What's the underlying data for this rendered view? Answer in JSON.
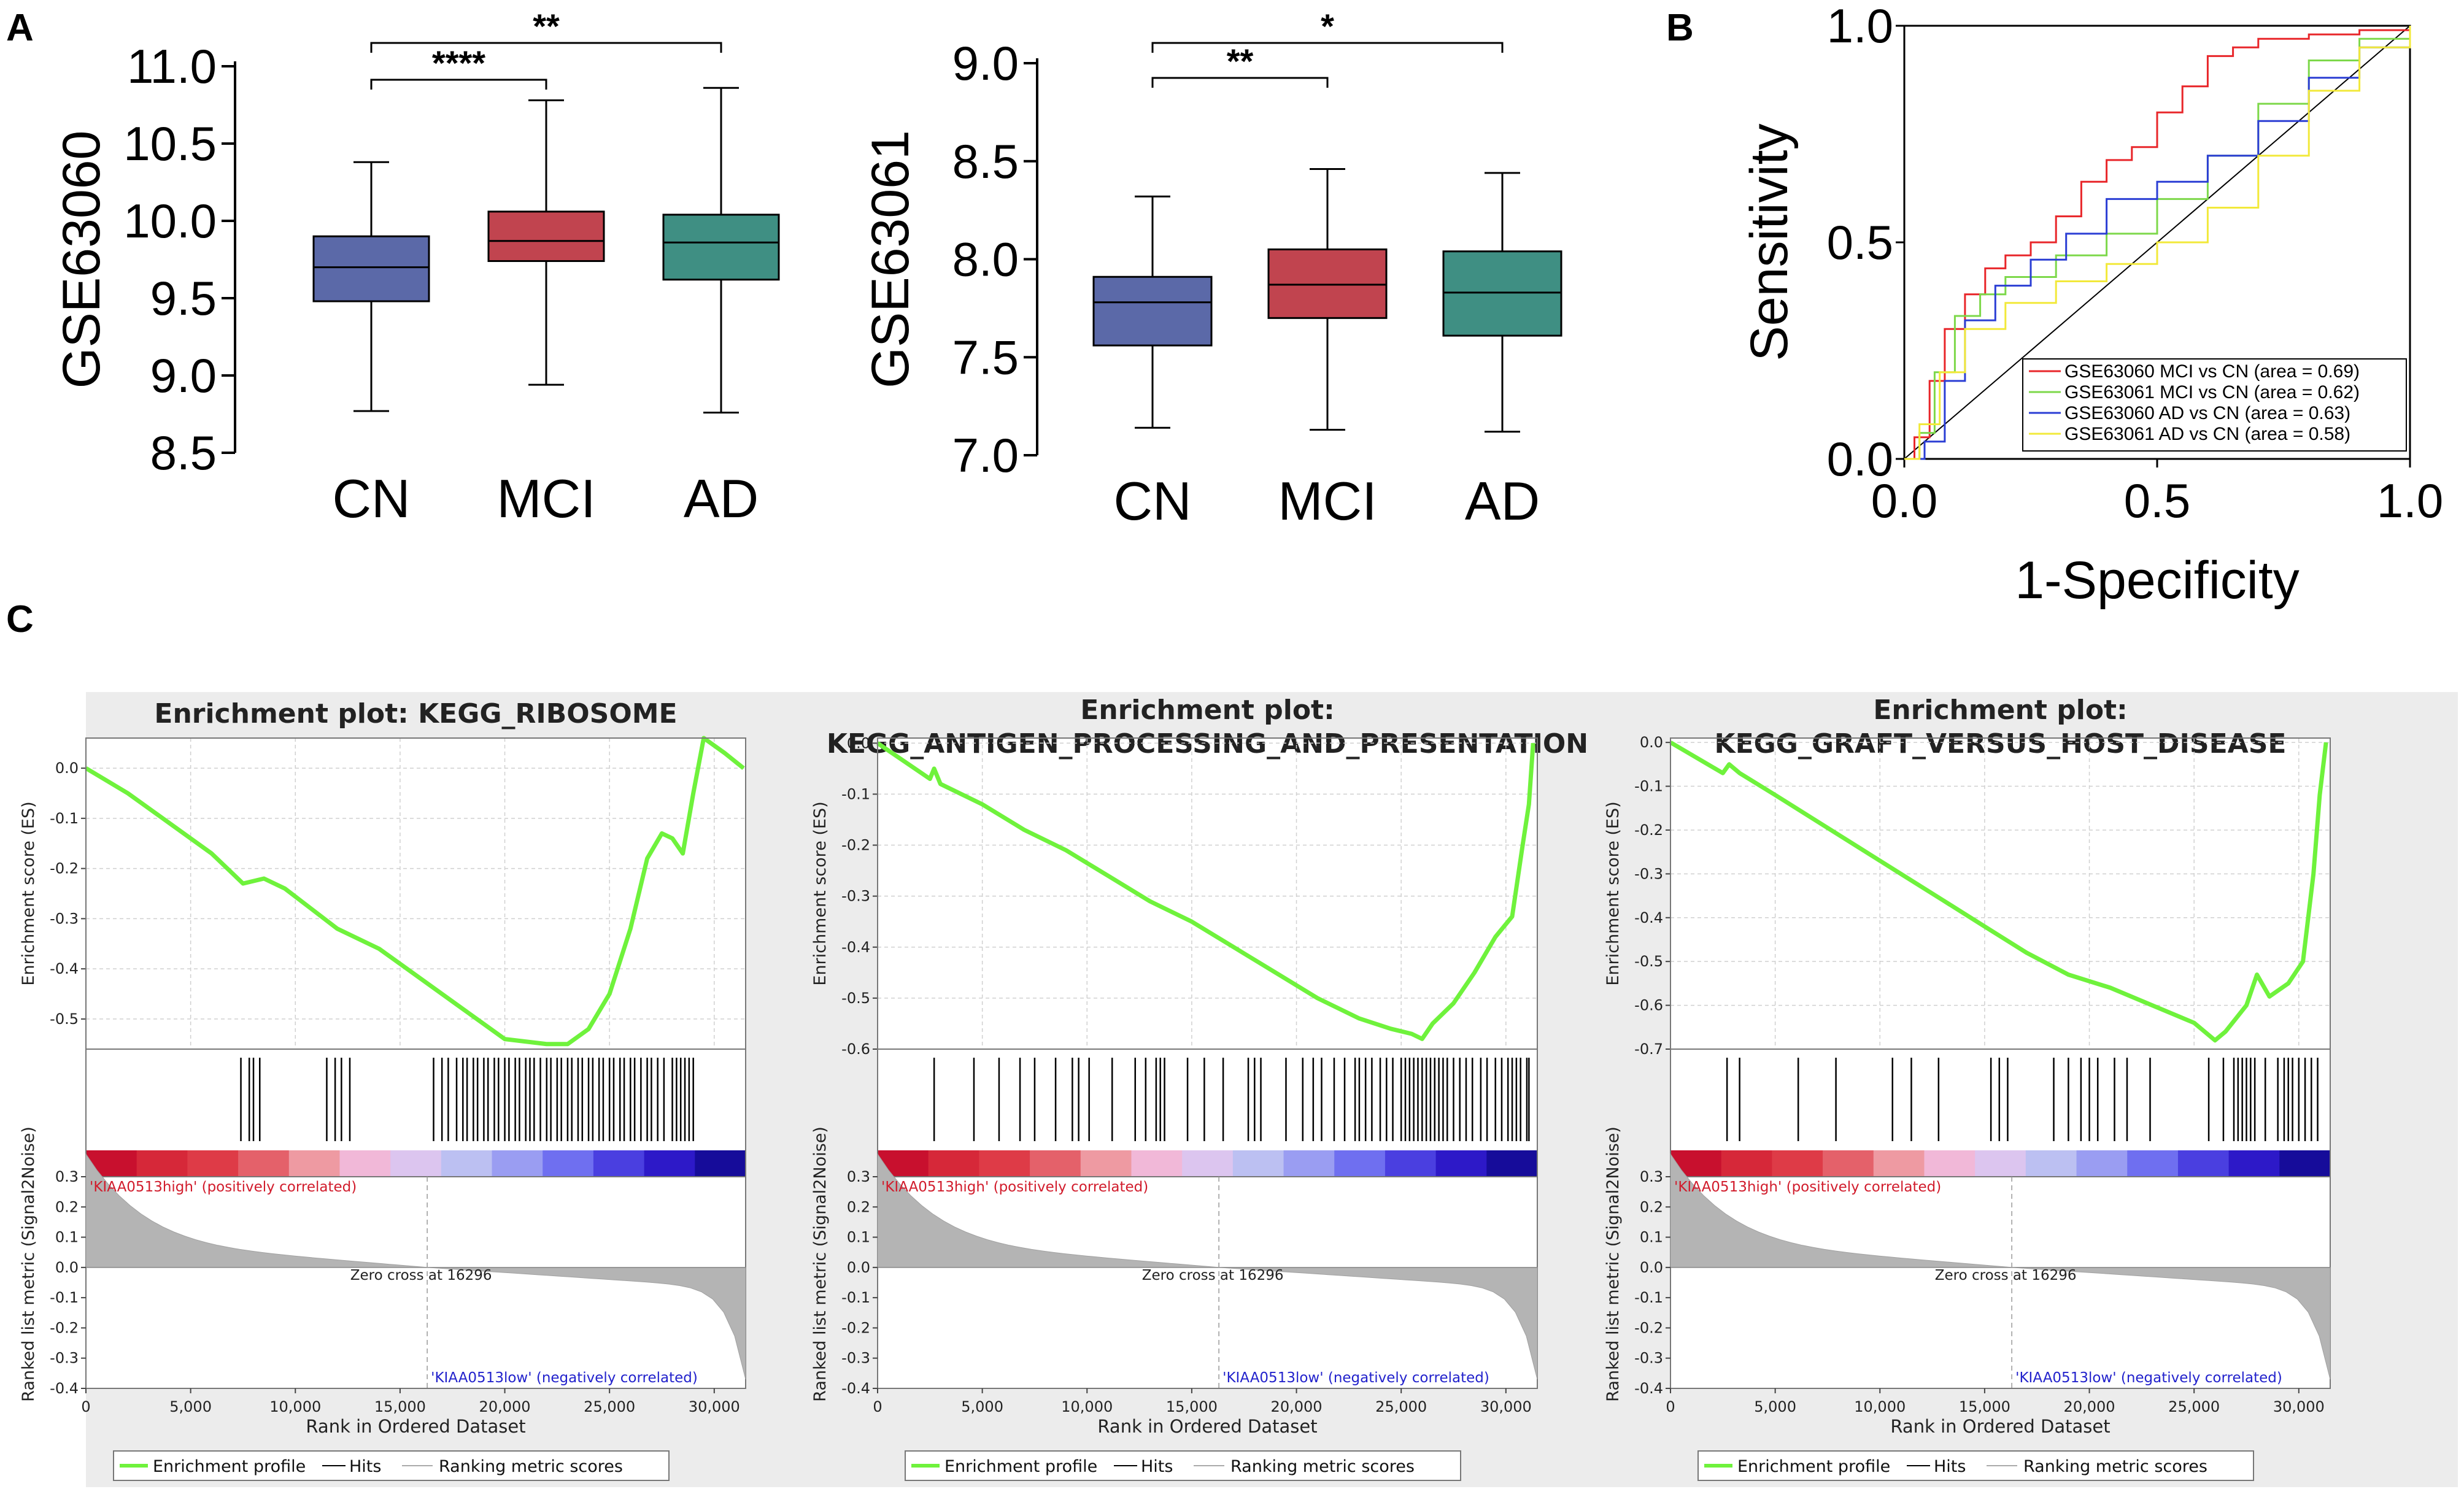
{
  "panels": {
    "a": "A",
    "b": "B",
    "c": "C"
  },
  "chart_data": [
    {
      "id": "box1",
      "type": "box",
      "ylabel": "GSE63060",
      "ylim": [
        8.5,
        11.0
      ],
      "yticks": [
        "8.5",
        "9.0",
        "9.5",
        "10.0",
        "10.5",
        "11.0"
      ],
      "categories": [
        "CN",
        "MCI",
        "AD"
      ],
      "colors": [
        "#5b69a8",
        "#c1444f",
        "#3f8f83"
      ],
      "boxes": [
        {
          "min": 8.77,
          "q1": 9.48,
          "median": 9.7,
          "q3": 9.9,
          "max": 10.38
        },
        {
          "min": 8.94,
          "q1": 9.74,
          "median": 9.87,
          "q3": 10.06,
          "max": 10.78
        },
        {
          "min": 8.76,
          "q1": 9.62,
          "median": 9.86,
          "q3": 10.04,
          "max": 10.86
        }
      ],
      "significance": [
        {
          "from": 0,
          "to": 1,
          "label": "****"
        },
        {
          "from": 0,
          "to": 2,
          "label": "**"
        }
      ]
    },
    {
      "id": "box2",
      "type": "box",
      "ylabel": "GSE63061",
      "ylim": [
        7.0,
        9.0
      ],
      "yticks": [
        "7.0",
        "7.5",
        "8.0",
        "8.5",
        "9.0"
      ],
      "categories": [
        "CN",
        "MCI",
        "AD"
      ],
      "colors": [
        "#5b69a8",
        "#c1444f",
        "#3f8f83"
      ],
      "boxes": [
        {
          "min": 7.14,
          "q1": 7.56,
          "median": 7.78,
          "q3": 7.91,
          "max": 8.32
        },
        {
          "min": 7.13,
          "q1": 7.7,
          "median": 7.87,
          "q3": 8.05,
          "max": 8.46
        },
        {
          "min": 7.12,
          "q1": 7.61,
          "median": 7.83,
          "q3": 8.04,
          "max": 8.44
        }
      ],
      "significance": [
        {
          "from": 0,
          "to": 1,
          "label": "**"
        },
        {
          "from": 0,
          "to": 2,
          "label": "*"
        }
      ]
    },
    {
      "id": "roc",
      "type": "line",
      "xlabel": "1-Specificity",
      "ylabel": "Sensitivity",
      "xlim": [
        0,
        1
      ],
      "ylim": [
        0,
        1
      ],
      "xticks": [
        "0.0",
        "0.5",
        "1.0"
      ],
      "yticks": [
        "0.0",
        "0.5",
        "1.0"
      ],
      "series": [
        {
          "name": "GSE63060 MCI vs CN (area = 0.69)",
          "color": "#e8262a",
          "points": [
            [
              0,
              0
            ],
            [
              0.02,
              0.05
            ],
            [
              0.05,
              0.18
            ],
            [
              0.08,
              0.3
            ],
            [
              0.12,
              0.38
            ],
            [
              0.16,
              0.44
            ],
            [
              0.2,
              0.47
            ],
            [
              0.25,
              0.5
            ],
            [
              0.3,
              0.56
            ],
            [
              0.35,
              0.64
            ],
            [
              0.4,
              0.69
            ],
            [
              0.45,
              0.72
            ],
            [
              0.5,
              0.8
            ],
            [
              0.55,
              0.86
            ],
            [
              0.6,
              0.93
            ],
            [
              0.65,
              0.95
            ],
            [
              0.7,
              0.97
            ],
            [
              0.8,
              0.98
            ],
            [
              0.9,
              0.99
            ],
            [
              1,
              1
            ]
          ]
        },
        {
          "name": "GSE63061 MCI vs CN (area = 0.62)",
          "color": "#7dd84a",
          "points": [
            [
              0,
              0
            ],
            [
              0.03,
              0.06
            ],
            [
              0.06,
              0.2
            ],
            [
              0.1,
              0.33
            ],
            [
              0.15,
              0.38
            ],
            [
              0.2,
              0.42
            ],
            [
              0.3,
              0.47
            ],
            [
              0.4,
              0.52
            ],
            [
              0.5,
              0.6
            ],
            [
              0.6,
              0.7
            ],
            [
              0.7,
              0.82
            ],
            [
              0.8,
              0.92
            ],
            [
              0.9,
              0.97
            ],
            [
              1,
              1
            ]
          ]
        },
        {
          "name": "GSE63060 AD vs CN (area = 0.63)",
          "color": "#2b3ed4",
          "points": [
            [
              0,
              0
            ],
            [
              0.04,
              0.04
            ],
            [
              0.08,
              0.18
            ],
            [
              0.12,
              0.32
            ],
            [
              0.18,
              0.4
            ],
            [
              0.25,
              0.46
            ],
            [
              0.32,
              0.52
            ],
            [
              0.4,
              0.6
            ],
            [
              0.5,
              0.64
            ],
            [
              0.6,
              0.7
            ],
            [
              0.7,
              0.78
            ],
            [
              0.8,
              0.88
            ],
            [
              0.9,
              0.95
            ],
            [
              1,
              1
            ]
          ]
        },
        {
          "name": "GSE63061 AD vs CN (area = 0.58)",
          "color": "#f2e93a",
          "points": [
            [
              0,
              0
            ],
            [
              0.03,
              0.08
            ],
            [
              0.07,
              0.2
            ],
            [
              0.12,
              0.3
            ],
            [
              0.2,
              0.36
            ],
            [
              0.3,
              0.41
            ],
            [
              0.4,
              0.45
            ],
            [
              0.5,
              0.5
            ],
            [
              0.6,
              0.58
            ],
            [
              0.7,
              0.7
            ],
            [
              0.8,
              0.85
            ],
            [
              0.9,
              0.95
            ],
            [
              1,
              1
            ]
          ]
        }
      ]
    },
    {
      "id": "gsea1",
      "type": "line",
      "title": [
        "Enrichment plot: KEGG_RIBOSOME"
      ],
      "es_yticks": [
        "0.0",
        "-0.1",
        "-0.2",
        "-0.3",
        "-0.4",
        "-0.5"
      ],
      "es_ylim": [
        -0.56,
        0.06
      ],
      "es_points": [
        [
          0,
          0
        ],
        [
          2000,
          -0.05
        ],
        [
          4000,
          -0.11
        ],
        [
          6000,
          -0.17
        ],
        [
          7500,
          -0.23
        ],
        [
          8500,
          -0.22
        ],
        [
          9500,
          -0.24
        ],
        [
          12000,
          -0.32
        ],
        [
          14000,
          -0.36
        ],
        [
          16000,
          -0.42
        ],
        [
          18000,
          -0.48
        ],
        [
          20000,
          -0.54
        ],
        [
          22000,
          -0.55
        ],
        [
          23000,
          -0.55
        ],
        [
          24000,
          -0.52
        ],
        [
          25000,
          -0.45
        ],
        [
          26000,
          -0.32
        ],
        [
          26800,
          -0.18
        ],
        [
          27500,
          -0.13
        ],
        [
          28000,
          -0.14
        ],
        [
          28500,
          -0.17
        ],
        [
          29000,
          -0.05
        ],
        [
          29500,
          0.06
        ],
        [
          30500,
          0.03
        ],
        [
          31400,
          0.0
        ]
      ],
      "hits": [
        7400,
        7800,
        8000,
        8300,
        11500,
        11900,
        12200,
        12600,
        16600,
        17000,
        17300,
        17700,
        18000,
        18200,
        18500,
        18700,
        19000,
        19200,
        19500,
        19700,
        20000,
        20200,
        20500,
        20700,
        21000,
        21200,
        21400,
        21700,
        22000,
        22200,
        22500,
        22700,
        23000,
        23200,
        23500,
        23700,
        24000,
        24200,
        24500,
        24700,
        25000,
        25200,
        25500,
        25700,
        26000,
        26200,
        26500,
        26800,
        27000,
        27300,
        27600,
        28000,
        28200,
        28400,
        28600,
        28800,
        29000
      ],
      "label_pos": "'KIAA0513high' (positively correlated)",
      "label_neg": "'KIAA0513low' (negatively correlated)",
      "zero_cross": "Zero cross at 16296",
      "rm_yticks": [
        "0.3",
        "0.2",
        "0.1",
        "0.0",
        "-0.1",
        "-0.2",
        "-0.3",
        "-0.4"
      ],
      "rm_ylim": [
        -0.4,
        0.3
      ],
      "xticks": [
        "0",
        "5,000",
        "10,000",
        "15,000",
        "20,000",
        "25,000",
        "30,000"
      ],
      "xlim": [
        0,
        31500
      ],
      "ylabel_es": "Enrichment score (ES)",
      "ylabel_rm": "Ranked list metric (Signal2Noise)",
      "xlabel": "Rank in Ordered Dataset",
      "legend": [
        "Enrichment profile",
        "Hits",
        "Ranking metric scores"
      ]
    },
    {
      "id": "gsea2",
      "type": "line",
      "title": [
        "Enrichment plot:",
        "KEGG_ANTIGEN_PROCESSING_AND_PRESENTATION"
      ],
      "es_yticks": [
        "0.0",
        "-0.1",
        "-0.2",
        "-0.3",
        "-0.4",
        "-0.5",
        "-0.6"
      ],
      "es_ylim": [
        -0.6,
        0.01
      ],
      "es_points": [
        [
          0,
          0
        ],
        [
          2500,
          -0.07
        ],
        [
          2700,
          -0.05
        ],
        [
          3000,
          -0.08
        ],
        [
          5000,
          -0.12
        ],
        [
          7000,
          -0.17
        ],
        [
          9000,
          -0.21
        ],
        [
          11000,
          -0.26
        ],
        [
          13000,
          -0.31
        ],
        [
          15000,
          -0.35
        ],
        [
          17000,
          -0.4
        ],
        [
          19000,
          -0.45
        ],
        [
          21000,
          -0.5
        ],
        [
          23000,
          -0.54
        ],
        [
          24500,
          -0.56
        ],
        [
          25500,
          -0.57
        ],
        [
          26000,
          -0.58
        ],
        [
          26500,
          -0.55
        ],
        [
          27500,
          -0.51
        ],
        [
          28500,
          -0.45
        ],
        [
          29500,
          -0.38
        ],
        [
          30300,
          -0.34
        ],
        [
          30800,
          -0.2
        ],
        [
          31100,
          -0.12
        ],
        [
          31300,
          0.0
        ]
      ],
      "hits": [
        2700,
        4600,
        5800,
        6800,
        7500,
        8500,
        9300,
        9600,
        10100,
        11200,
        12300,
        12800,
        13300,
        13500,
        13700,
        14800,
        15600,
        16500,
        17700,
        18000,
        18300,
        19500,
        20300,
        20800,
        21200,
        21800,
        22300,
        22800,
        23000,
        23300,
        23600,
        24000,
        24300,
        24600,
        25000,
        25200,
        25400,
        25600,
        25800,
        26000,
        26200,
        26400,
        26600,
        26800,
        27000,
        27200,
        27500,
        27800,
        28100,
        28400,
        28800,
        29100,
        29500,
        29800,
        30100,
        30300,
        30500,
        30700,
        31000,
        31100
      ],
      "label_pos": "'KIAA0513high' (positively correlated)",
      "label_neg": "'KIAA0513low' (negatively correlated)",
      "zero_cross": "Zero cross at 16296",
      "rm_yticks": [
        "0.3",
        "0.2",
        "0.1",
        "0.0",
        "-0.1",
        "-0.2",
        "-0.3",
        "-0.4"
      ],
      "rm_ylim": [
        -0.4,
        0.3
      ],
      "xticks": [
        "0",
        "5,000",
        "10,000",
        "15,000",
        "20,000",
        "25,000",
        "30,000"
      ],
      "xlim": [
        0,
        31500
      ],
      "ylabel_es": "Enrichment score (ES)",
      "ylabel_rm": "Ranked list metric (Signal2Noise)",
      "xlabel": "Rank in Ordered Dataset",
      "legend": [
        "Enrichment profile",
        "Hits",
        "Ranking metric scores"
      ]
    },
    {
      "id": "gsea3",
      "type": "line",
      "title": [
        "Enrichment plot:",
        "KEGG_GRAFT_VERSUS_HOST_DISEASE"
      ],
      "es_yticks": [
        "0.0",
        "-0.1",
        "-0.2",
        "-0.3",
        "-0.4",
        "-0.5",
        "-0.6",
        "-0.7"
      ],
      "es_ylim": [
        -0.7,
        0.01
      ],
      "es_points": [
        [
          0,
          0
        ],
        [
          2500,
          -0.07
        ],
        [
          2800,
          -0.05
        ],
        [
          3300,
          -0.07
        ],
        [
          5000,
          -0.12
        ],
        [
          7000,
          -0.18
        ],
        [
          9000,
          -0.24
        ],
        [
          11000,
          -0.3
        ],
        [
          13000,
          -0.36
        ],
        [
          15000,
          -0.42
        ],
        [
          17000,
          -0.48
        ],
        [
          19000,
          -0.53
        ],
        [
          21000,
          -0.56
        ],
        [
          23000,
          -0.6
        ],
        [
          25000,
          -0.64
        ],
        [
          26000,
          -0.68
        ],
        [
          26500,
          -0.66
        ],
        [
          27500,
          -0.6
        ],
        [
          28000,
          -0.53
        ],
        [
          28600,
          -0.58
        ],
        [
          29500,
          -0.55
        ],
        [
          30200,
          -0.5
        ],
        [
          30700,
          -0.3
        ],
        [
          31000,
          -0.12
        ],
        [
          31300,
          0.0
        ]
      ],
      "hits": [
        2700,
        3300,
        6100,
        7900,
        10600,
        11500,
        12800,
        15300,
        15700,
        16100,
        18300,
        19000,
        19600,
        20000,
        20400,
        21200,
        21800,
        22900,
        25700,
        26400,
        26900,
        27100,
        27300,
        27500,
        27700,
        27900,
        28400,
        29000,
        29300,
        29500,
        29700,
        30000,
        30300,
        30600,
        30900
      ],
      "label_pos": "'KIAA0513high' (positively correlated)",
      "label_neg": "'KIAA0513low' (negatively correlated)",
      "zero_cross": "Zero cross at 16296",
      "rm_yticks": [
        "0.3",
        "0.2",
        "0.1",
        "0.0",
        "-0.1",
        "-0.2",
        "-0.3",
        "-0.4"
      ],
      "rm_ylim": [
        -0.4,
        0.3
      ],
      "xticks": [
        "0",
        "5,000",
        "10,000",
        "15,000",
        "20,000",
        "25,000",
        "30,000"
      ],
      "xlim": [
        0,
        31500
      ],
      "ylabel_es": "Enrichment score (ES)",
      "ylabel_rm": "Ranked list metric (Signal2Noise)",
      "xlabel": "Rank in Ordered Dataset",
      "legend": [
        "Enrichment profile",
        "Hits",
        "Ranking metric scores"
      ]
    }
  ]
}
